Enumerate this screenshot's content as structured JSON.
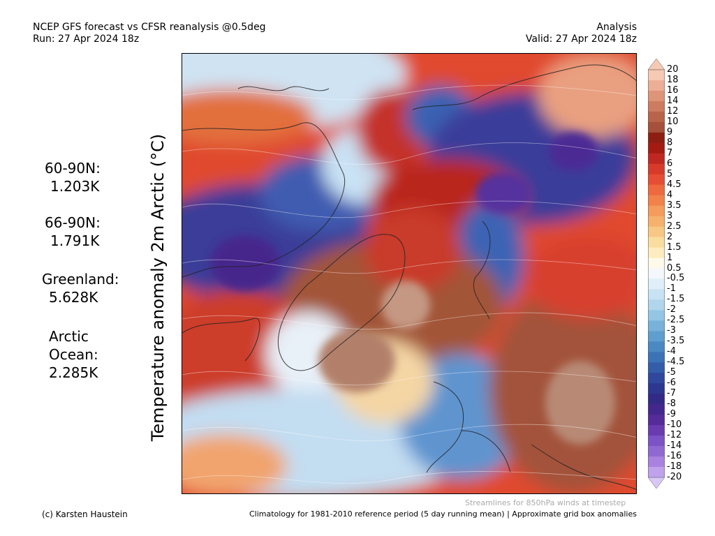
{
  "header": {
    "title": "NCEP GFS forecast vs CFSR reanalysis @0.5deg",
    "run": "Run: 27 Apr 2024 18z",
    "mode": "Analysis",
    "valid": "Valid: 27 Apr 2024 18z"
  },
  "y_axis_label": "Temperature anomaly 2m Arctic (°C)",
  "stats": [
    {
      "label": "60-90N:",
      "value": "1.203K"
    },
    {
      "label": "66-90N:",
      "value": "1.791K"
    },
    {
      "label": "Greenland:",
      "value": "5.628K"
    },
    {
      "label": "Arctic",
      "label2": "Ocean:",
      "value": "2.285K"
    }
  ],
  "colorbar": {
    "labels": [
      "20",
      "18",
      "16",
      "14",
      "12",
      "10",
      "9",
      "8",
      "7",
      "6",
      "5",
      "4.5",
      "4",
      "3.5",
      "3",
      "2.5",
      "2",
      "1.5",
      "1",
      "0.5",
      "-0.5",
      "-1",
      "-1.5",
      "-2",
      "-2.5",
      "-3",
      "-3.5",
      "-4",
      "-4.5",
      "-5",
      "-6",
      "-7",
      "-8",
      "-9",
      "-10",
      "-12",
      "-14",
      "-16",
      "-18",
      "-20"
    ],
    "colors": [
      "#f6c9b4",
      "#ecae97",
      "#de9478",
      "#cd7c5f",
      "#b96449",
      "#a4503a",
      "#8c1f12",
      "#a51b14",
      "#c02720",
      "#d83a2a",
      "#e64e34",
      "#ee6a3e",
      "#f2824a",
      "#f49c5c",
      "#f6b16d",
      "#f8c784",
      "#fadc9e",
      "#fcecbf",
      "#fef9e8",
      "#f4f7fb",
      "#dfeef8",
      "#c7e2f3",
      "#b0d5ec",
      "#95c5e4",
      "#78b2da",
      "#5f9fd0",
      "#4a89c3",
      "#3b73b6",
      "#335da8",
      "#2f479c",
      "#2d3790",
      "#332a86",
      "#44278c",
      "#552b9a",
      "#6a3bb0",
      "#7c52c4",
      "#9068d2",
      "#a882de",
      "#c0a2ec"
    ],
    "top_arrow_color": "#f6c9b4",
    "bottom_arrow_color": "#d8c8f6"
  },
  "footer": {
    "credit": "(c) Karsten Haustein",
    "streamlines_note": "Streamlines for 850hPa winds at timestep",
    "climatology_note": "Climatology for 1981-2010 reference period (5 day running mean) | Approximate grid box anomalies"
  }
}
